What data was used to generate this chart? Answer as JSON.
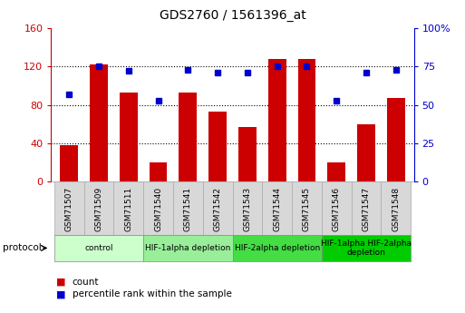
{
  "title": "GDS2760 / 1561396_at",
  "samples": [
    "GSM71507",
    "GSM71509",
    "GSM71511",
    "GSM71540",
    "GSM71541",
    "GSM71542",
    "GSM71543",
    "GSM71544",
    "GSM71545",
    "GSM71546",
    "GSM71547",
    "GSM71548"
  ],
  "counts": [
    38,
    122,
    93,
    20,
    93,
    73,
    57,
    128,
    128,
    20,
    60,
    87
  ],
  "percentiles": [
    57,
    75,
    72,
    53,
    73,
    71,
    71,
    75,
    75,
    53,
    71,
    73
  ],
  "ylim_left": [
    0,
    160
  ],
  "ylim_right": [
    0,
    100
  ],
  "yticks_left": [
    0,
    40,
    80,
    120,
    160
  ],
  "ytick_labels_left": [
    "0",
    "40",
    "80",
    "120",
    "160"
  ],
  "yticks_right": [
    0,
    25,
    50,
    75,
    100
  ],
  "ytick_labels_right": [
    "0",
    "25",
    "50",
    "75",
    "100%"
  ],
  "bar_color": "#cc0000",
  "dot_color": "#0000cc",
  "protocol_groups": [
    {
      "label": "control",
      "start": 0,
      "end": 2,
      "color": "#ccffcc"
    },
    {
      "label": "HIF-1alpha depletion",
      "start": 3,
      "end": 5,
      "color": "#99ee99"
    },
    {
      "label": "HIF-2alpha depletion",
      "start": 6,
      "end": 8,
      "color": "#44dd44"
    },
    {
      "label": "HIF-1alpha HIF-2alpha\ndepletion",
      "start": 9,
      "end": 11,
      "color": "#00cc00"
    }
  ],
  "legend_items": [
    {
      "label": "count",
      "color": "#cc0000"
    },
    {
      "label": "percentile rank within the sample",
      "color": "#0000cc"
    }
  ],
  "tick_color_left": "#cc0000",
  "tick_color_right": "#0000cc"
}
